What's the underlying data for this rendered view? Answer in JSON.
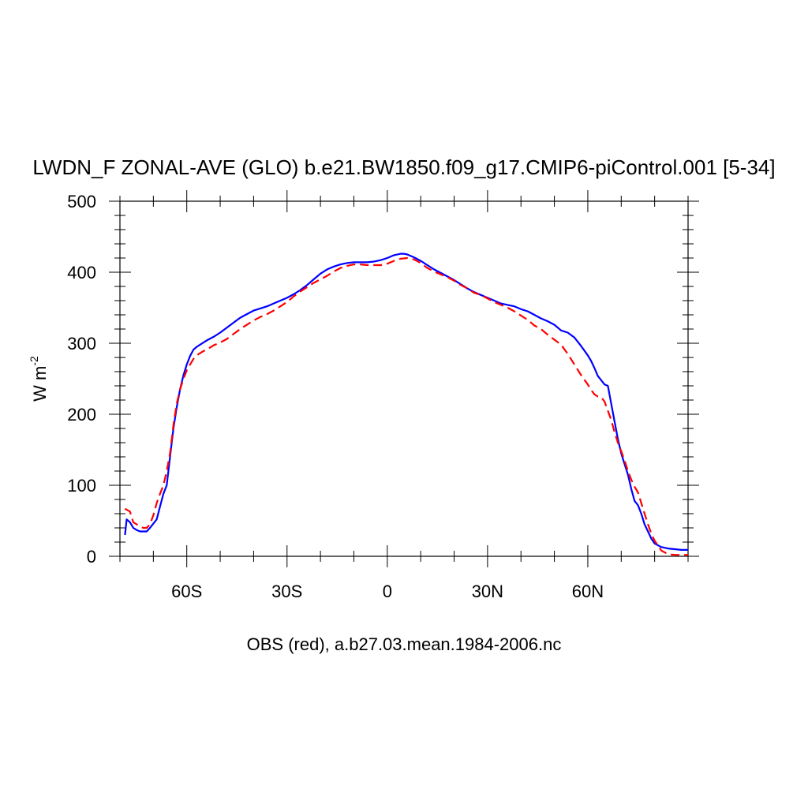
{
  "chart_data": {
    "type": "line",
    "title": "LWDN_F ZONAL-AVE (GLO) b.e21.BW1850.f09_g17.CMIP6-piControl.001 [5-34]",
    "xlabel": "OBS (red), a.b27.03.mean.1984-2006.nc",
    "ylabel": {
      "base": "W m",
      "exponent": "-2"
    },
    "xlim": [
      -80,
      90
    ],
    "ylim": [
      0,
      500
    ],
    "x_ticks": [
      {
        "value": -60,
        "label": "60S"
      },
      {
        "value": -30,
        "label": "30S"
      },
      {
        "value": 0,
        "label": "0"
      },
      {
        "value": 30,
        "label": "30N"
      },
      {
        "value": 60,
        "label": "60N"
      }
    ],
    "y_ticks": [
      {
        "value": 0,
        "label": "0"
      },
      {
        "value": 100,
        "label": "100"
      },
      {
        "value": 200,
        "label": "200"
      },
      {
        "value": 300,
        "label": "300"
      },
      {
        "value": 400,
        "label": "400"
      },
      {
        "value": 500,
        "label": "500"
      }
    ],
    "grid": false,
    "series": [
      {
        "color": "#0000ff",
        "dash": "solid",
        "x": [
          -78.5,
          -78,
          -77,
          -76,
          -75,
          -74,
          -73,
          -72,
          -71,
          -70,
          -69,
          -68,
          -67,
          -66,
          -65,
          -64,
          -63,
          -62,
          -61,
          -60,
          -59,
          -58,
          -57,
          -56,
          -55,
          -54,
          -52,
          -50,
          -48,
          -46,
          -44,
          -42,
          -40,
          -38,
          -36,
          -34,
          -32,
          -30,
          -28,
          -26,
          -24,
          -22,
          -20,
          -18,
          -16,
          -14,
          -12,
          -10,
          -8,
          -6,
          -4,
          -2,
          0,
          2,
          4,
          5,
          6,
          8,
          10,
          12,
          14,
          16,
          18,
          20,
          22,
          24,
          26,
          28,
          30,
          32,
          34,
          36,
          38,
          40,
          42,
          44,
          46,
          48,
          50,
          52,
          54,
          56,
          58,
          60,
          61,
          62,
          63,
          64,
          65,
          66,
          67,
          68,
          69,
          70,
          71,
          72,
          73,
          74,
          75,
          76,
          77,
          78,
          79,
          80,
          82,
          84,
          86,
          88,
          90
        ],
        "y": [
          30,
          52,
          48,
          40,
          37,
          35,
          35,
          35,
          40,
          46,
          52,
          70,
          88,
          100,
          140,
          180,
          210,
          235,
          255,
          270,
          282,
          291,
          295,
          298,
          301,
          304,
          309,
          315,
          322,
          329,
          336,
          341,
          346,
          349,
          352,
          356,
          360,
          364,
          369,
          375,
          382,
          390,
          398,
          404,
          408,
          411,
          413,
          414,
          414,
          414,
          415,
          417,
          420,
          424,
          426,
          426,
          425,
          421,
          416,
          410,
          404,
          399,
          394,
          389,
          383,
          377,
          372,
          368,
          364,
          360,
          356,
          354,
          352,
          348,
          345,
          340,
          335,
          331,
          326,
          318,
          315,
          308,
          296,
          283,
          275,
          265,
          254,
          248,
          242,
          240,
          215,
          190,
          165,
          145,
          130,
          115,
          95,
          78,
          72,
          60,
          45,
          35,
          25,
          18,
          13,
          11,
          10,
          9,
          9
        ]
      },
      {
        "color": "#ff0000",
        "dash": "dashed",
        "x": [
          -78.5,
          -77,
          -76,
          -75,
          -74,
          -73,
          -72,
          -71,
          -70,
          -69,
          -68,
          -67,
          -66,
          -65,
          -64,
          -63,
          -62,
          -61,
          -60,
          -59,
          -58,
          -57,
          -56,
          -55,
          -54,
          -52,
          -50,
          -48,
          -46,
          -44,
          -42,
          -40,
          -38,
          -36,
          -34,
          -32,
          -30,
          -28,
          -26,
          -24,
          -22,
          -20,
          -18,
          -16,
          -14,
          -12,
          -10,
          -8,
          -6,
          -4,
          -2,
          0,
          2,
          4,
          6,
          8,
          10,
          12,
          14,
          16,
          18,
          20,
          22,
          24,
          26,
          28,
          30,
          32,
          34,
          36,
          38,
          40,
          42,
          44,
          46,
          48,
          50,
          52,
          54,
          56,
          58,
          60,
          61,
          62,
          63,
          64,
          65,
          66,
          67,
          68,
          69,
          70,
          71,
          72,
          73,
          74,
          75,
          76,
          77,
          78,
          79,
          80,
          81,
          82,
          84,
          86,
          88,
          90
        ],
        "y": [
          67,
          63,
          48,
          45,
          42,
          40,
          40,
          45,
          58,
          75,
          88,
          100,
          120,
          145,
          185,
          215,
          235,
          250,
          262,
          270,
          278,
          283,
          286,
          289,
          291,
          297,
          301,
          306,
          313,
          320,
          326,
          332,
          337,
          341,
          346,
          352,
          358,
          366,
          373,
          379,
          385,
          390,
          395,
          401,
          406,
          409,
          411,
          411,
          410,
          410,
          410,
          412,
          416,
          419,
          420,
          418,
          413,
          406,
          401,
          397,
          393,
          388,
          382,
          377,
          371,
          368,
          363,
          358,
          354,
          350,
          345,
          339,
          333,
          325,
          320,
          312,
          305,
          298,
          285,
          270,
          255,
          242,
          234,
          228,
          225,
          224,
          218,
          205,
          192,
          175,
          160,
          148,
          135,
          120,
          108,
          98,
          90,
          75,
          60,
          45,
          32,
          22,
          15,
          8,
          3,
          2,
          2,
          2
        ]
      }
    ]
  }
}
